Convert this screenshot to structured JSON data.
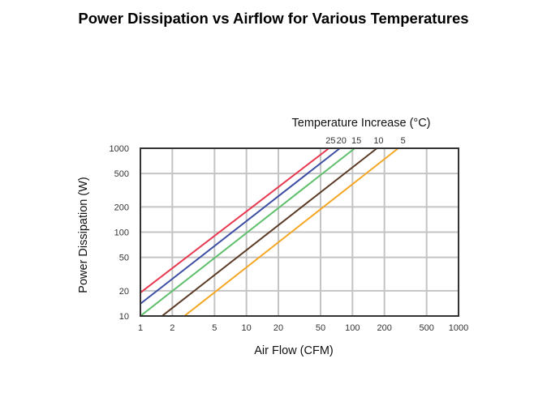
{
  "chart_data": {
    "type": "line",
    "title": "Power Dissipation vs Airflow for Various Temperatures",
    "xlabel": "Air Flow (CFM)",
    "ylabel": "Power Dissipation (W)",
    "legend_title": "Temperature Increase (°C)",
    "xscale": "log",
    "yscale": "log",
    "xlim": [
      1,
      1000
    ],
    "ylim": [
      10,
      1000
    ],
    "grid": true,
    "x_ticks": [
      1,
      2,
      5,
      10,
      20,
      50,
      100,
      200,
      500,
      1000
    ],
    "y_ticks": [
      10,
      20,
      50,
      100,
      200,
      500,
      1000
    ],
    "series": [
      {
        "name": "25",
        "color": "#e8384f",
        "points": [
          [
            1,
            19
          ],
          [
            60,
            1000
          ]
        ]
      },
      {
        "name": "20",
        "color": "#3b4ea3",
        "points": [
          [
            1,
            14
          ],
          [
            76,
            1000
          ]
        ]
      },
      {
        "name": "15",
        "color": "#5dbf6b",
        "points": [
          [
            1,
            10
          ],
          [
            105,
            1000
          ]
        ]
      },
      {
        "name": "10",
        "color": "#5a3a24",
        "points": [
          [
            1.6,
            10
          ],
          [
            170,
            1000
          ]
        ]
      },
      {
        "name": "5",
        "color": "#f5a623",
        "points": [
          [
            2.6,
            10
          ],
          [
            270,
            1000
          ]
        ]
      }
    ]
  }
}
